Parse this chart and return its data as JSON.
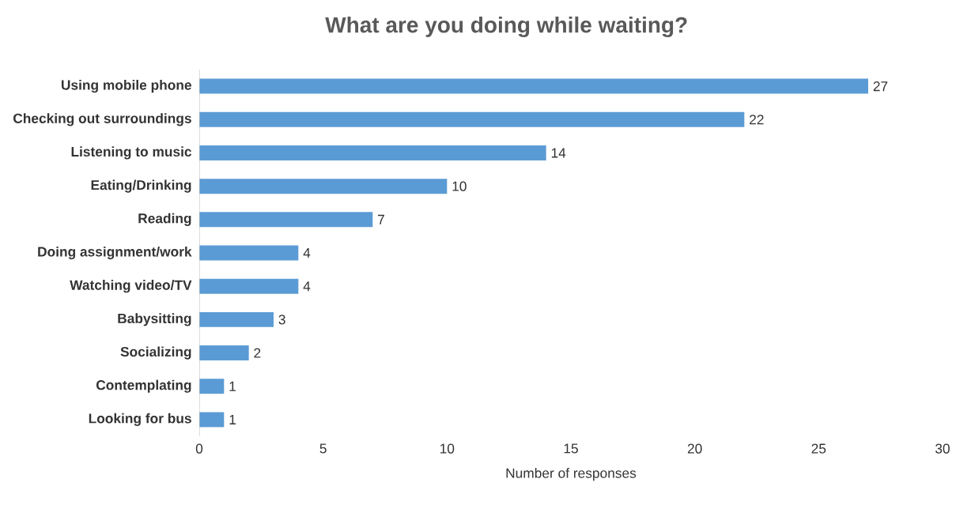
{
  "chart_data": {
    "type": "bar",
    "orientation": "horizontal",
    "title": "What are you doing while waiting?",
    "xlabel": "Number of responses",
    "categories": [
      "Using mobile phone",
      "Checking out surroundings",
      "Listening to music",
      "Eating/Drinking",
      "Reading",
      "Doing assignment/work",
      "Watching video/TV",
      "Babysitting",
      "Socializing",
      "Contemplating",
      "Looking for bus"
    ],
    "values": [
      27,
      22,
      14,
      10,
      7,
      4,
      4,
      3,
      2,
      1,
      1
    ],
    "color": "#5b9bd5",
    "xlim": [
      0,
      30
    ],
    "xticks": [
      0,
      5,
      10,
      15,
      20,
      25,
      30
    ],
    "data_labels": true,
    "grid": false
  }
}
